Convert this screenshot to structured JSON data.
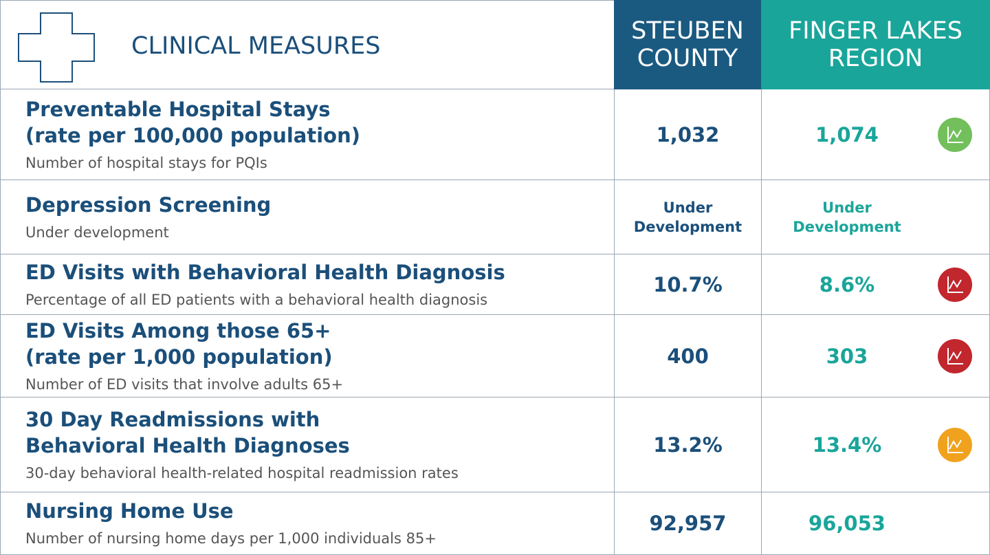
{
  "header": {
    "title": "CLINICAL MEASURES",
    "columns": [
      [
        "STEUBEN",
        "COUNTY"
      ],
      [
        "FINGER LAKES",
        "REGION"
      ]
    ]
  },
  "rows": [
    {
      "title": [
        "Preventable Hospital Stays",
        "(rate per 100,000 population)"
      ],
      "description": "Number of hospital stays for PQIs",
      "values": [
        "1,032",
        "1,074"
      ],
      "icon_color": "#72bf5c"
    },
    {
      "title": [
        "Depression Screening"
      ],
      "description": "Under development",
      "values": [
        "Under Development",
        "Under Development"
      ]
    },
    {
      "title": [
        "ED Visits with Behavioral Health Diagnosis"
      ],
      "description": "Percentage of all ED patients with a behavioral health diagnosis",
      "values": [
        "10.7%",
        "8.6%"
      ],
      "icon_color": "#c1272d"
    },
    {
      "title": [
        "ED Visits Among those 65+",
        "(rate per 1,000 population)"
      ],
      "description": "Number of ED visits that involve adults 65+",
      "values": [
        "400",
        "303"
      ],
      "icon_color": "#c1272d"
    },
    {
      "title": [
        "30 Day Readmissions with",
        "Behavioral Health Diagnoses"
      ],
      "description": "30-day behavioral health-related hospital readmission rates",
      "values": [
        "13.2%",
        "13.4%"
      ],
      "icon_color": "#f0a21e"
    },
    {
      "title": [
        "Nursing Home Use"
      ],
      "description": "Number of nursing home days per 1,000 individuals 85+",
      "values": [
        "92,957",
        "96,053"
      ]
    }
  ]
}
